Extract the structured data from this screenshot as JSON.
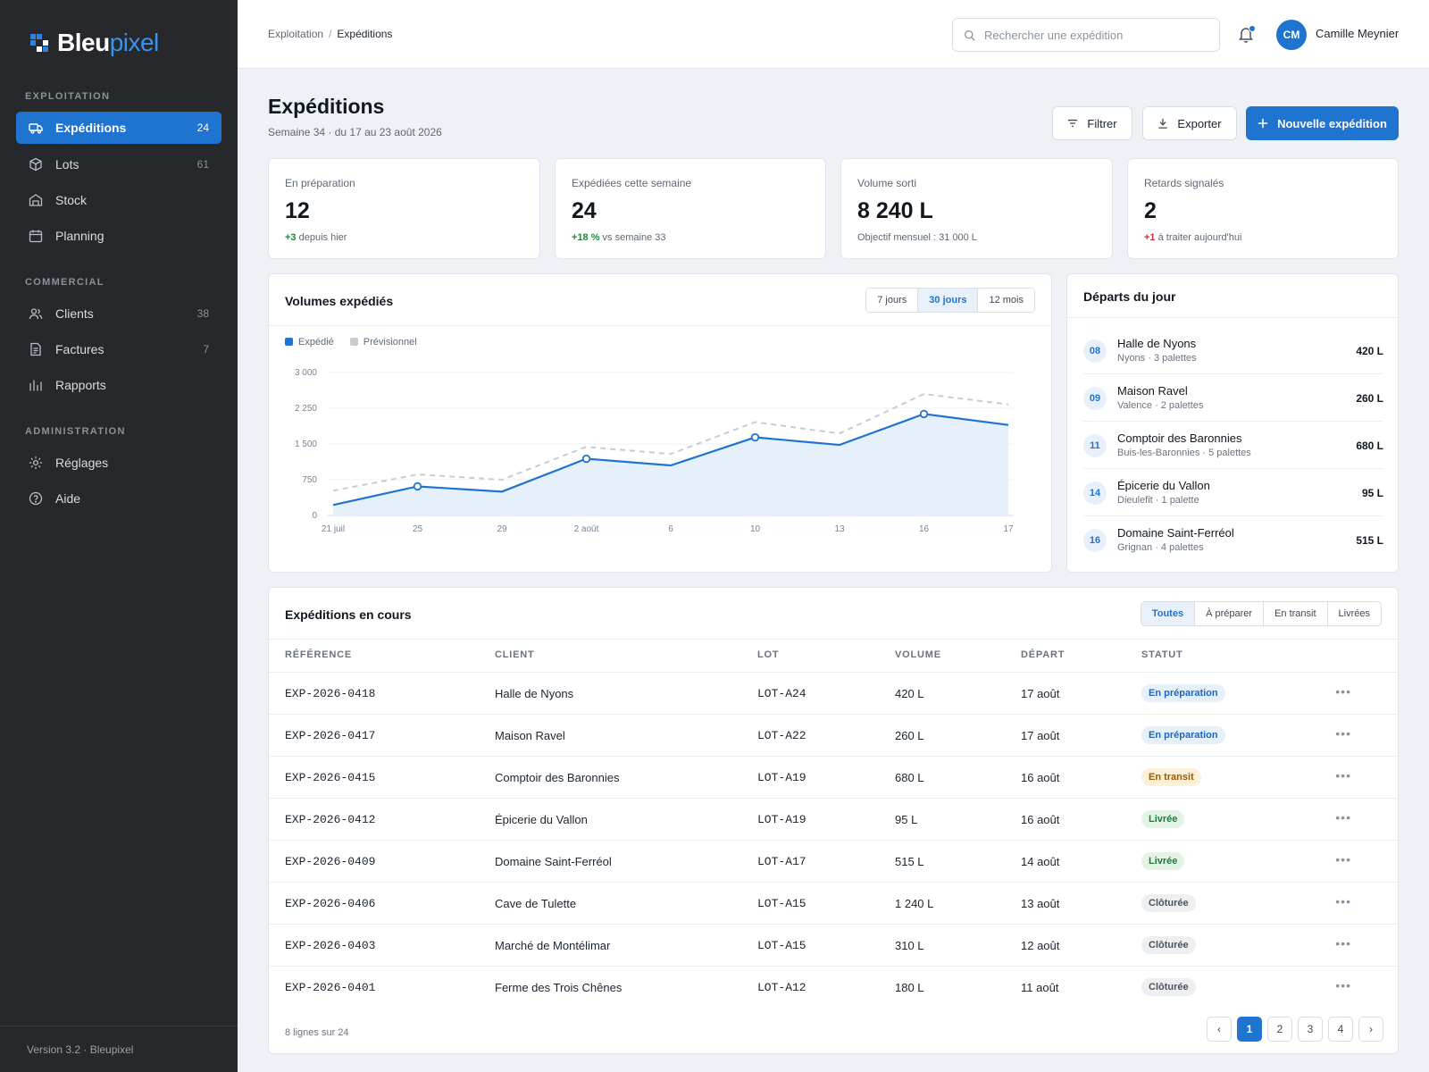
{
  "brand": {
    "name_a": "Bleu",
    "name_b": "pixel"
  },
  "sidebar": {
    "sections": [
      {
        "label": "EXPLOITATION"
      },
      {
        "label": "COMMERCIAL"
      },
      {
        "label": "ADMINISTRATION"
      }
    ],
    "items": [
      {
        "label": "Expéditions",
        "count": "24",
        "icon": "truck-icon",
        "active": true
      },
      {
        "label": "Lots",
        "count": "61",
        "icon": "box-icon"
      },
      {
        "label": "Stock",
        "count": "",
        "icon": "warehouse-icon"
      },
      {
        "label": "Planning",
        "count": "",
        "icon": "calendar-icon"
      },
      {
        "label": "Clients",
        "count": "38",
        "icon": "users-icon"
      },
      {
        "label": "Factures",
        "count": "7",
        "icon": "invoice-icon"
      },
      {
        "label": "Rapports",
        "count": "",
        "icon": "bar-chart-icon"
      },
      {
        "label": "Réglages",
        "count": "",
        "icon": "gear-icon"
      },
      {
        "label": "Aide",
        "count": "",
        "icon": "help-icon"
      }
    ],
    "footer": "Version 3.2 · Bleupixel"
  },
  "topbar": {
    "breadcrumb": [
      "Exploitation",
      "Expéditions"
    ],
    "search_placeholder": "Rechercher une expédition",
    "user": {
      "initials": "CM",
      "name": "Camille Meynier"
    }
  },
  "header": {
    "title": "Expéditions",
    "subtitle": "Semaine 34 · du 17 au 23 août 2026",
    "buttons": {
      "filter": "Filtrer",
      "export": "Exporter",
      "new": "Nouvelle expédition"
    }
  },
  "kpis": [
    {
      "label": "En préparation",
      "value": "12",
      "delta": "+3",
      "note": " depuis hier",
      "tone": "up"
    },
    {
      "label": "Expédiées cette semaine",
      "value": "24",
      "delta": "+18 %",
      "note": " vs semaine 33",
      "tone": "up"
    },
    {
      "label": "Volume sorti",
      "value": "8 240 L",
      "delta": "",
      "note": "Objectif mensuel : 31 000 L",
      "tone": ""
    },
    {
      "label": "Retards signalés",
      "value": "2",
      "delta": "+1",
      "note": " à traiter aujourd'hui",
      "tone": "warn"
    }
  ],
  "chart_card": {
    "title": "Volumes expédiés",
    "ranges": [
      "7 jours",
      "30 jours",
      "12 mois"
    ],
    "active_range": "30 jours"
  },
  "chart_data": {
    "type": "line",
    "categories": [
      "21 juil",
      "25",
      "29",
      "2 août",
      "6",
      "10",
      "13",
      "16",
      "17"
    ],
    "series": [
      {
        "name": "Expédié",
        "values": [
          220,
          610,
          500,
          1190,
          1050,
          1640,
          1480,
          2130,
          1900
        ],
        "color": "#1f74d0"
      },
      {
        "name": "Prévisionnel",
        "values": [
          520,
          860,
          750,
          1440,
          1290,
          1960,
          1720,
          2550,
          2330
        ],
        "color": "#c7ccd3"
      }
    ],
    "yticks": [
      "0",
      "750",
      "1 500",
      "2 250",
      "3 000"
    ],
    "ylim": [
      0,
      3000
    ],
    "legend": "top-left",
    "grid": true
  },
  "departures": {
    "title": "Départs du jour",
    "items": [
      {
        "day": "08",
        "name": "Halle de Nyons",
        "sub": "Nyons · 3 palettes",
        "vol": "420 L"
      },
      {
        "day": "09",
        "name": "Maison Ravel",
        "sub": "Valence · 2 palettes",
        "vol": "260 L"
      },
      {
        "day": "11",
        "name": "Comptoir des Baronnies",
        "sub": "Buis-les-Baronnies · 5 palettes",
        "vol": "680 L"
      },
      {
        "day": "14",
        "name": "Épicerie du Vallon",
        "sub": "Dieulefit · 1 palette",
        "vol": "95 L"
      },
      {
        "day": "16",
        "name": "Domaine Saint-Ferréol",
        "sub": "Grignan · 4 palettes",
        "vol": "515 L"
      }
    ]
  },
  "table": {
    "title": "Expéditions en cours",
    "filters": [
      "Toutes",
      "À préparer",
      "En transit",
      "Livrées"
    ],
    "active_filter": "Toutes",
    "columns": [
      "RÉFÉRENCE",
      "CLIENT",
      "LOT",
      "VOLUME",
      "DÉPART",
      "STATUT"
    ],
    "rows": [
      {
        "ref": "EXP-2026-0418",
        "client": "Halle de Nyons",
        "lot": "LOT-A24",
        "volume": "420 L",
        "depart": "17 août",
        "status": "En préparation",
        "kind": "prep"
      },
      {
        "ref": "EXP-2026-0417",
        "client": "Maison Ravel",
        "lot": "LOT-A22",
        "volume": "260 L",
        "depart": "17 août",
        "status": "En préparation",
        "kind": "prep"
      },
      {
        "ref": "EXP-2026-0415",
        "client": "Comptoir des Baronnies",
        "lot": "LOT-A19",
        "volume": "680 L",
        "depart": "16 août",
        "status": "En transit",
        "kind": "transit"
      },
      {
        "ref": "EXP-2026-0412",
        "client": "Épicerie du Vallon",
        "lot": "LOT-A19",
        "volume": "95 L",
        "depart": "16 août",
        "status": "Livrée",
        "kind": "livree"
      },
      {
        "ref": "EXP-2026-0409",
        "client": "Domaine Saint-Ferréol",
        "lot": "LOT-A17",
        "volume": "515 L",
        "depart": "14 août",
        "status": "Livrée",
        "kind": "livree"
      },
      {
        "ref": "EXP-2026-0406",
        "client": "Cave de Tulette",
        "lot": "LOT-A15",
        "volume": "1 240 L",
        "depart": "13 août",
        "status": "Clôturée",
        "kind": "close"
      },
      {
        "ref": "EXP-2026-0403",
        "client": "Marché de Montélimar",
        "lot": "LOT-A15",
        "volume": "310 L",
        "depart": "12 août",
        "status": "Clôturée",
        "kind": "close"
      },
      {
        "ref": "EXP-2026-0401",
        "client": "Ferme des Trois Chênes",
        "lot": "LOT-A12",
        "volume": "180 L",
        "depart": "11 août",
        "status": "Clôturée",
        "kind": "close"
      }
    ],
    "footer": "8 lignes sur 24",
    "pages": [
      "‹",
      "1",
      "2",
      "3",
      "4",
      "›"
    ],
    "current_page": "1"
  }
}
